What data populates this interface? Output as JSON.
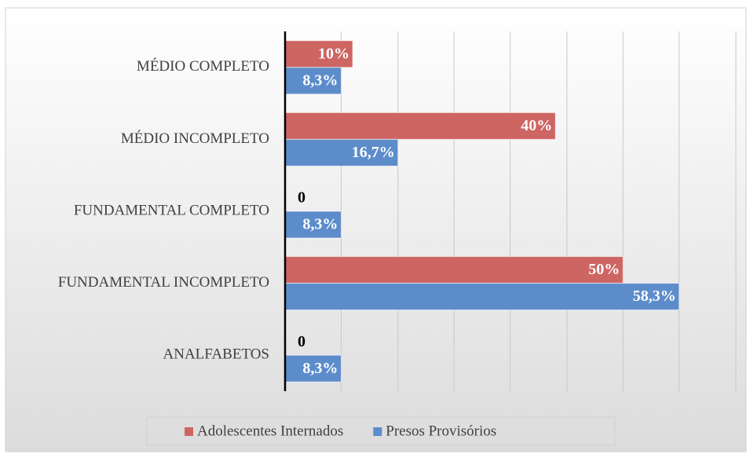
{
  "chart_data": {
    "type": "barh",
    "categories": [
      "MÉDIO COMPLETO",
      "MÉDIO INCOMPLETO",
      "FUNDAMENTAL COMPLETO",
      "FUNDAMENTAL INCOMPLETO",
      "ANALFABETOS"
    ],
    "series": [
      {
        "name": "Adolescentes Internados",
        "color": "#cd6563",
        "values": [
          10,
          40,
          0,
          50,
          0
        ],
        "value_labels": [
          "10%",
          "40%",
          "0",
          "50%",
          "0"
        ]
      },
      {
        "name": "Presos Provisórios",
        "color": "#5d8ccb",
        "values": [
          8.3,
          16.7,
          8.3,
          58.3,
          8.3
        ],
        "value_labels": [
          "8,3%",
          "16,7%",
          "8,3%",
          "58,3%",
          "8,3%"
        ]
      }
    ],
    "xlim": [
      0,
      66.7
    ],
    "xticks": [
      0,
      8.3,
      16.7,
      25,
      33.3,
      41.7,
      50,
      58.3,
      66.7
    ],
    "grid": true,
    "legend": "bottom"
  }
}
